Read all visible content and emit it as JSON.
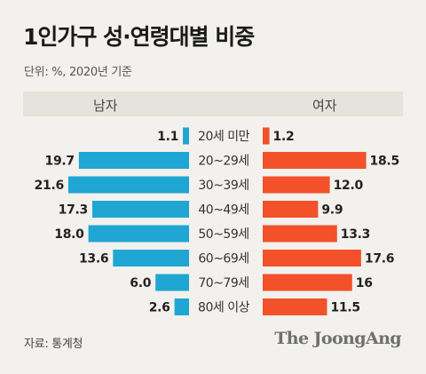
{
  "title": "1인가구 성·연령대별 비중",
  "unit_note": "단위: %, 2020년 기준",
  "source": "자료: 통계청",
  "logo": "The JoongAng",
  "colors": {
    "male": "#1fa6d3",
    "female": "#f2512a",
    "header_band": "#e6e2dc",
    "background": "#f3f1ed"
  },
  "chart_data": {
    "type": "bar",
    "orientation": "horizontal-butterfly",
    "categories": [
      "20세 미만",
      "20~29세",
      "30~39세",
      "40~49세",
      "50~59세",
      "60~69세",
      "70~79세",
      "80세 이상"
    ],
    "series": [
      {
        "name": "남자",
        "values": [
          1.1,
          19.7,
          21.6,
          17.3,
          18.0,
          13.6,
          6.0,
          2.6
        ],
        "labels": [
          "1.1",
          "19.7",
          "21.6",
          "17.3",
          "18.0",
          "13.6",
          "6.0",
          "2.6"
        ]
      },
      {
        "name": "여자",
        "values": [
          1.2,
          18.5,
          12.0,
          9.9,
          13.3,
          17.6,
          16,
          11.5
        ],
        "labels": [
          "1.2",
          "18.5",
          "12.0",
          "9.9",
          "13.3",
          "17.6",
          "16",
          "11.5"
        ]
      }
    ],
    "grid": false,
    "legend": "top"
  }
}
